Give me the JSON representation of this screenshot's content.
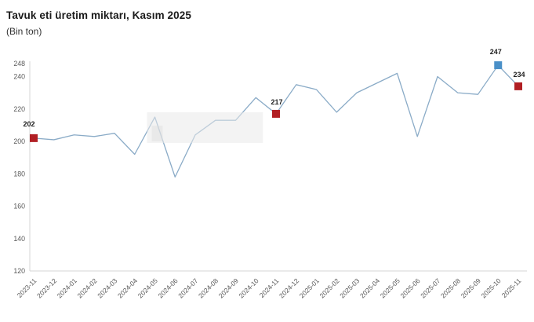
{
  "header": {
    "title": "Tavuk eti üretim miktarı, Kasım 2025",
    "subtitle": "(Bin ton)"
  },
  "chart_data": {
    "type": "line",
    "title": "Tavuk eti üretim miktarı, Kasım 2025",
    "subtitle": "(Bin ton)",
    "x": [
      "2023-11",
      "2023-12",
      "2024-01",
      "2024-02",
      "2024-03",
      "2024-04",
      "2024-05",
      "2024-06",
      "2024-07",
      "2024-08",
      "2024-09",
      "2024-10",
      "2024-11",
      "2024-12",
      "2025-01",
      "2025-02",
      "2025-03",
      "2025-04",
      "2025-05",
      "2025-06",
      "2025-07",
      "2025-08",
      "2025-09",
      "2025-10",
      "2025-11"
    ],
    "values": [
      202,
      201,
      204,
      203,
      205,
      192,
      215,
      178,
      204,
      213,
      213,
      227,
      217,
      235,
      232,
      218,
      230,
      236,
      242,
      203,
      240,
      230,
      229,
      247,
      234
    ],
    "ylim": [
      120,
      248
    ],
    "yticks": [
      248,
      240,
      220,
      200,
      180,
      160,
      140,
      120
    ],
    "grid": false,
    "legend": "none",
    "line_color": "#8aabc7",
    "axis_color": "#d6d6d6",
    "tick_label_color": "#595959",
    "annotation_text_color": "#1f1f1f",
    "highlight_band": {
      "x_from": "2024-05",
      "x_to": "2024-10",
      "value_top": 218,
      "value_bottom": 199,
      "color": "#e9e9e9"
    },
    "annotated_points": [
      {
        "x": "2023-11",
        "value": 202,
        "label": "202",
        "marker_color": "#b11f24",
        "marker_shape": "square"
      },
      {
        "x": "2024-11",
        "value": 217,
        "label": "217",
        "marker_color": "#b11f24",
        "marker_shape": "square"
      },
      {
        "x": "2025-10",
        "value": 247,
        "label": "247",
        "marker_color": "#4a90c8",
        "marker_shape": "square"
      },
      {
        "x": "2025-11",
        "value": 234,
        "label": "234",
        "marker_color": "#b11f24",
        "marker_shape": "square"
      }
    ]
  }
}
